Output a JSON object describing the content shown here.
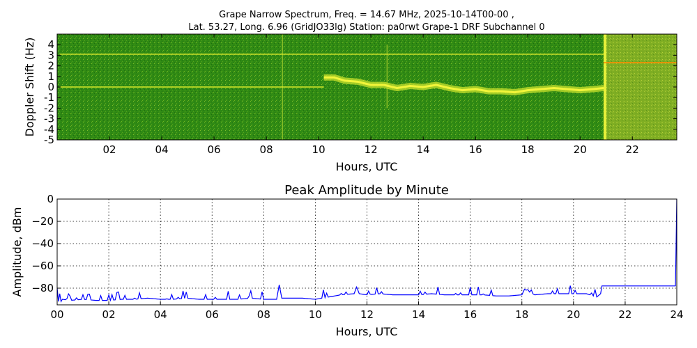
{
  "chart_data": [
    {
      "type": "heatmap",
      "title_line1": "Grape Narrow Spectrum, Freq. = 14.67 MHz, 2025-10-14T00-00 ,",
      "title_line2": "Lat.  53.27, Long.   6.96 (GridJO33lg) Station: pa0rwt Grape-1 DRF Subchannel 0",
      "xlabel": "Hours, UTC",
      "ylabel": "Doppler Shift (Hz)",
      "xlim": [
        0,
        23.7
      ],
      "ylim": [
        -5,
        5
      ],
      "x_ticks": [
        {
          "value": 2,
          "label": "02"
        },
        {
          "value": 4,
          "label": "04"
        },
        {
          "value": 6,
          "label": "06"
        },
        {
          "value": 8,
          "label": "08"
        },
        {
          "value": 10,
          "label": "10"
        },
        {
          "value": 12,
          "label": "12"
        },
        {
          "value": 14,
          "label": "14"
        },
        {
          "value": 16,
          "label": "16"
        },
        {
          "value": 18,
          "label": "18"
        },
        {
          "value": 20,
          "label": "20"
        },
        {
          "value": 22,
          "label": "22"
        }
      ],
      "y_ticks": [
        {
          "value": 4,
          "label": "4"
        },
        {
          "value": 3,
          "label": "3"
        },
        {
          "value": 2,
          "label": "2"
        },
        {
          "value": 1,
          "label": "1"
        },
        {
          "value": 0,
          "label": "0"
        },
        {
          "value": -1,
          "label": "-1"
        },
        {
          "value": -2,
          "label": "-2"
        },
        {
          "value": -3,
          "label": "-3"
        },
        {
          "value": -4,
          "label": "-4"
        },
        {
          "value": -5,
          "label": "-5"
        }
      ],
      "background_color": "#2e8b14",
      "band_2100_color": "#8cb52a",
      "carrier_trace": [
        [
          10.2,
          0.9
        ],
        [
          10.6,
          0.9
        ],
        [
          11.0,
          0.6
        ],
        [
          11.5,
          0.5
        ],
        [
          12.0,
          0.2
        ],
        [
          12.5,
          0.2
        ],
        [
          13.0,
          -0.1
        ],
        [
          13.5,
          0.1
        ],
        [
          14.0,
          0.0
        ],
        [
          14.5,
          0.2
        ],
        [
          15.0,
          -0.1
        ],
        [
          15.5,
          -0.3
        ],
        [
          16.0,
          -0.2
        ],
        [
          16.5,
          -0.4
        ],
        [
          17.0,
          -0.4
        ],
        [
          17.5,
          -0.5
        ],
        [
          18.0,
          -0.3
        ],
        [
          18.5,
          -0.2
        ],
        [
          19.0,
          -0.1
        ],
        [
          19.5,
          -0.2
        ],
        [
          20.0,
          -0.3
        ],
        [
          20.5,
          -0.2
        ],
        [
          20.9,
          -0.1
        ]
      ],
      "lines": [
        {
          "name": "upper-line",
          "x0": 0.1,
          "x1": 20.9,
          "y": 3.1,
          "color": "#d6e82a"
        },
        {
          "name": "zero-line",
          "x0": 0.1,
          "x1": 10.2,
          "y": 0.0,
          "color": "#d6e82a"
        },
        {
          "name": "orange-line",
          "x0": 20.9,
          "x1": 23.7,
          "y": 2.3,
          "color": "#ff8c00"
        }
      ]
    },
    {
      "type": "line",
      "title": "Peak Amplitude by Minute",
      "xlabel": "Hours, UTC",
      "ylabel": "Amplitude, dBm",
      "xlim": [
        0,
        24
      ],
      "ylim": [
        -95,
        0
      ],
      "grid": true,
      "x_ticks": [
        {
          "value": 0,
          "label": "00"
        },
        {
          "value": 2,
          "label": "02"
        },
        {
          "value": 4,
          "label": "04"
        },
        {
          "value": 6,
          "label": "06"
        },
        {
          "value": 8,
          "label": "08"
        },
        {
          "value": 10,
          "label": "10"
        },
        {
          "value": 12,
          "label": "12"
        },
        {
          "value": 14,
          "label": "14"
        },
        {
          "value": 16,
          "label": "16"
        },
        {
          "value": 18,
          "label": "18"
        },
        {
          "value": 20,
          "label": "20"
        },
        {
          "value": 22,
          "label": "22"
        },
        {
          "value": 24,
          "label": "24"
        }
      ],
      "y_ticks": [
        {
          "value": 0,
          "label": "0"
        },
        {
          "value": -20,
          "label": "−20"
        },
        {
          "value": -40,
          "label": "−40"
        },
        {
          "value": -60,
          "label": "−60"
        },
        {
          "value": -80,
          "label": "−80"
        }
      ],
      "color": "#0000ff",
      "series": [
        {
          "x": [
            0,
            0.05,
            0.1,
            0.15,
            0.2,
            0.5,
            1.0,
            1.5,
            2.0,
            2.5,
            3.0,
            3.5,
            4.0,
            4.5,
            5.0,
            5.5,
            6.0,
            6.5,
            7.0,
            7.5,
            8.0,
            8.5,
            8.6,
            8.7,
            9.0,
            9.5,
            10.0,
            10.5,
            11.0,
            11.5,
            11.6,
            11.7,
            12.0,
            12.5,
            13.0,
            13.5,
            14.0,
            14.5,
            15.0,
            15.5,
            16.0,
            16.5,
            17.0,
            17.5,
            18.0,
            18.1,
            18.5,
            19.0,
            19.5,
            20.0,
            20.5,
            20.9,
            21.05,
            21.1,
            21.5,
            22.0,
            22.5,
            23.0,
            23.5,
            23.95,
            24.0
          ],
          "y": [
            -80,
            -92,
            -85,
            -92,
            -90,
            -91,
            -90,
            -91,
            -91,
            -90,
            -90,
            -89,
            -90,
            -90,
            -89,
            -90,
            -90,
            -90,
            -90,
            -89,
            -90,
            -90,
            -77,
            -89,
            -89,
            -89,
            -90,
            -88,
            -86,
            -85,
            -79,
            -85,
            -86,
            -85,
            -86,
            -86,
            -86,
            -85,
            -86,
            -86,
            -86,
            -86,
            -87,
            -87,
            -86,
            -81,
            -86,
            -85,
            -85,
            -85,
            -85,
            -88,
            -85,
            -78,
            -78,
            -78,
            -78,
            -78,
            -78,
            -78,
            0
          ]
        }
      ]
    }
  ]
}
